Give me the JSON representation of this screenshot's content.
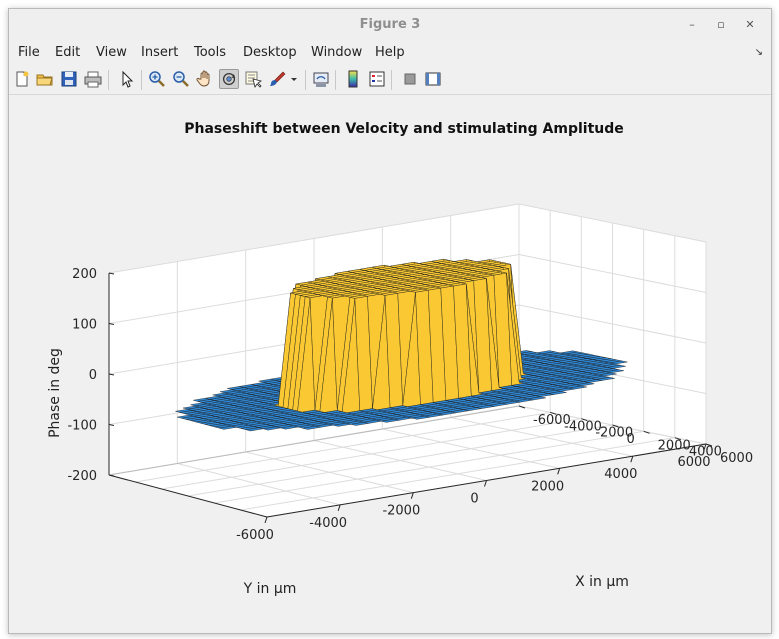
{
  "window": {
    "title": "Figure 3",
    "controls": {
      "minimize": "–",
      "maximize": "▫",
      "close": "✕"
    }
  },
  "menubar": {
    "items": [
      "File",
      "Edit",
      "View",
      "Insert",
      "Tools",
      "Desktop",
      "Window",
      "Help"
    ],
    "mnemonics": [
      0,
      0,
      0,
      0,
      0,
      0,
      0,
      0
    ],
    "arrow": "↘"
  },
  "toolbar": {
    "buttons": [
      {
        "name": "new-figure-icon"
      },
      {
        "name": "open-file-icon"
      },
      {
        "name": "save-figure-icon"
      },
      {
        "name": "print-figure-icon"
      },
      {
        "name": "edit-plot-arrow-icon"
      },
      {
        "name": "zoom-in-icon"
      },
      {
        "name": "zoom-out-icon"
      },
      {
        "name": "pan-hand-icon"
      },
      {
        "name": "rotate-3d-icon",
        "active": true
      },
      {
        "name": "data-cursor-icon"
      },
      {
        "name": "brush-icon"
      },
      {
        "name": "brush-dropdown-icon"
      },
      {
        "name": "link-plot-icon"
      },
      {
        "name": "insert-colorbar-icon"
      },
      {
        "name": "insert-legend-icon"
      },
      {
        "name": "hide-plot-tools-icon"
      },
      {
        "name": "show-plot-tools-icon"
      }
    ]
  },
  "chart_data": {
    "type": "surface",
    "title": "Phaseshift between Velocity and stimulating Amplitude",
    "xlabel": "X in µm",
    "ylabel": "Y in µm",
    "zlabel": "Phase in deg",
    "xlim": [
      -6000,
      6000
    ],
    "ylim": [
      -6000,
      6000
    ],
    "zlim": [
      -200,
      200
    ],
    "x_ticks": [
      6000,
      4000,
      2000,
      0,
      -2000,
      -4000,
      -6000
    ],
    "x_tick_labels": [
      "6000",
      "4000",
      "2000",
      "0",
      "-2000",
      "-4000",
      "-6000"
    ],
    "y_ticks": [
      -6000,
      -4000,
      -2000,
      0,
      2000,
      4000,
      6000
    ],
    "y_tick_labels": [
      "-6000",
      "-4000",
      "-2000",
      "0",
      "2000",
      "4000",
      "6000"
    ],
    "z_ticks": [
      200,
      100,
      0,
      -100,
      -200
    ],
    "z_tick_labels": [
      "200",
      "100",
      "0",
      "-100",
      "-200"
    ],
    "grid": true,
    "colormap": "parula",
    "colors": {
      "low": "#3e26a8",
      "mid_low": "#2d8bd4",
      "mid": "#3bbcac",
      "mid_high": "#a8c35a",
      "high": "#f9c832",
      "top": "#f5d25a",
      "blue_floor": "#2f86d2"
    },
    "regions": {
      "outer_ring_phase_deg": -60,
      "inner_plateau_phase_deg": 160,
      "plateau_radius_um": 3000,
      "ring_radius_um": 6000
    }
  }
}
